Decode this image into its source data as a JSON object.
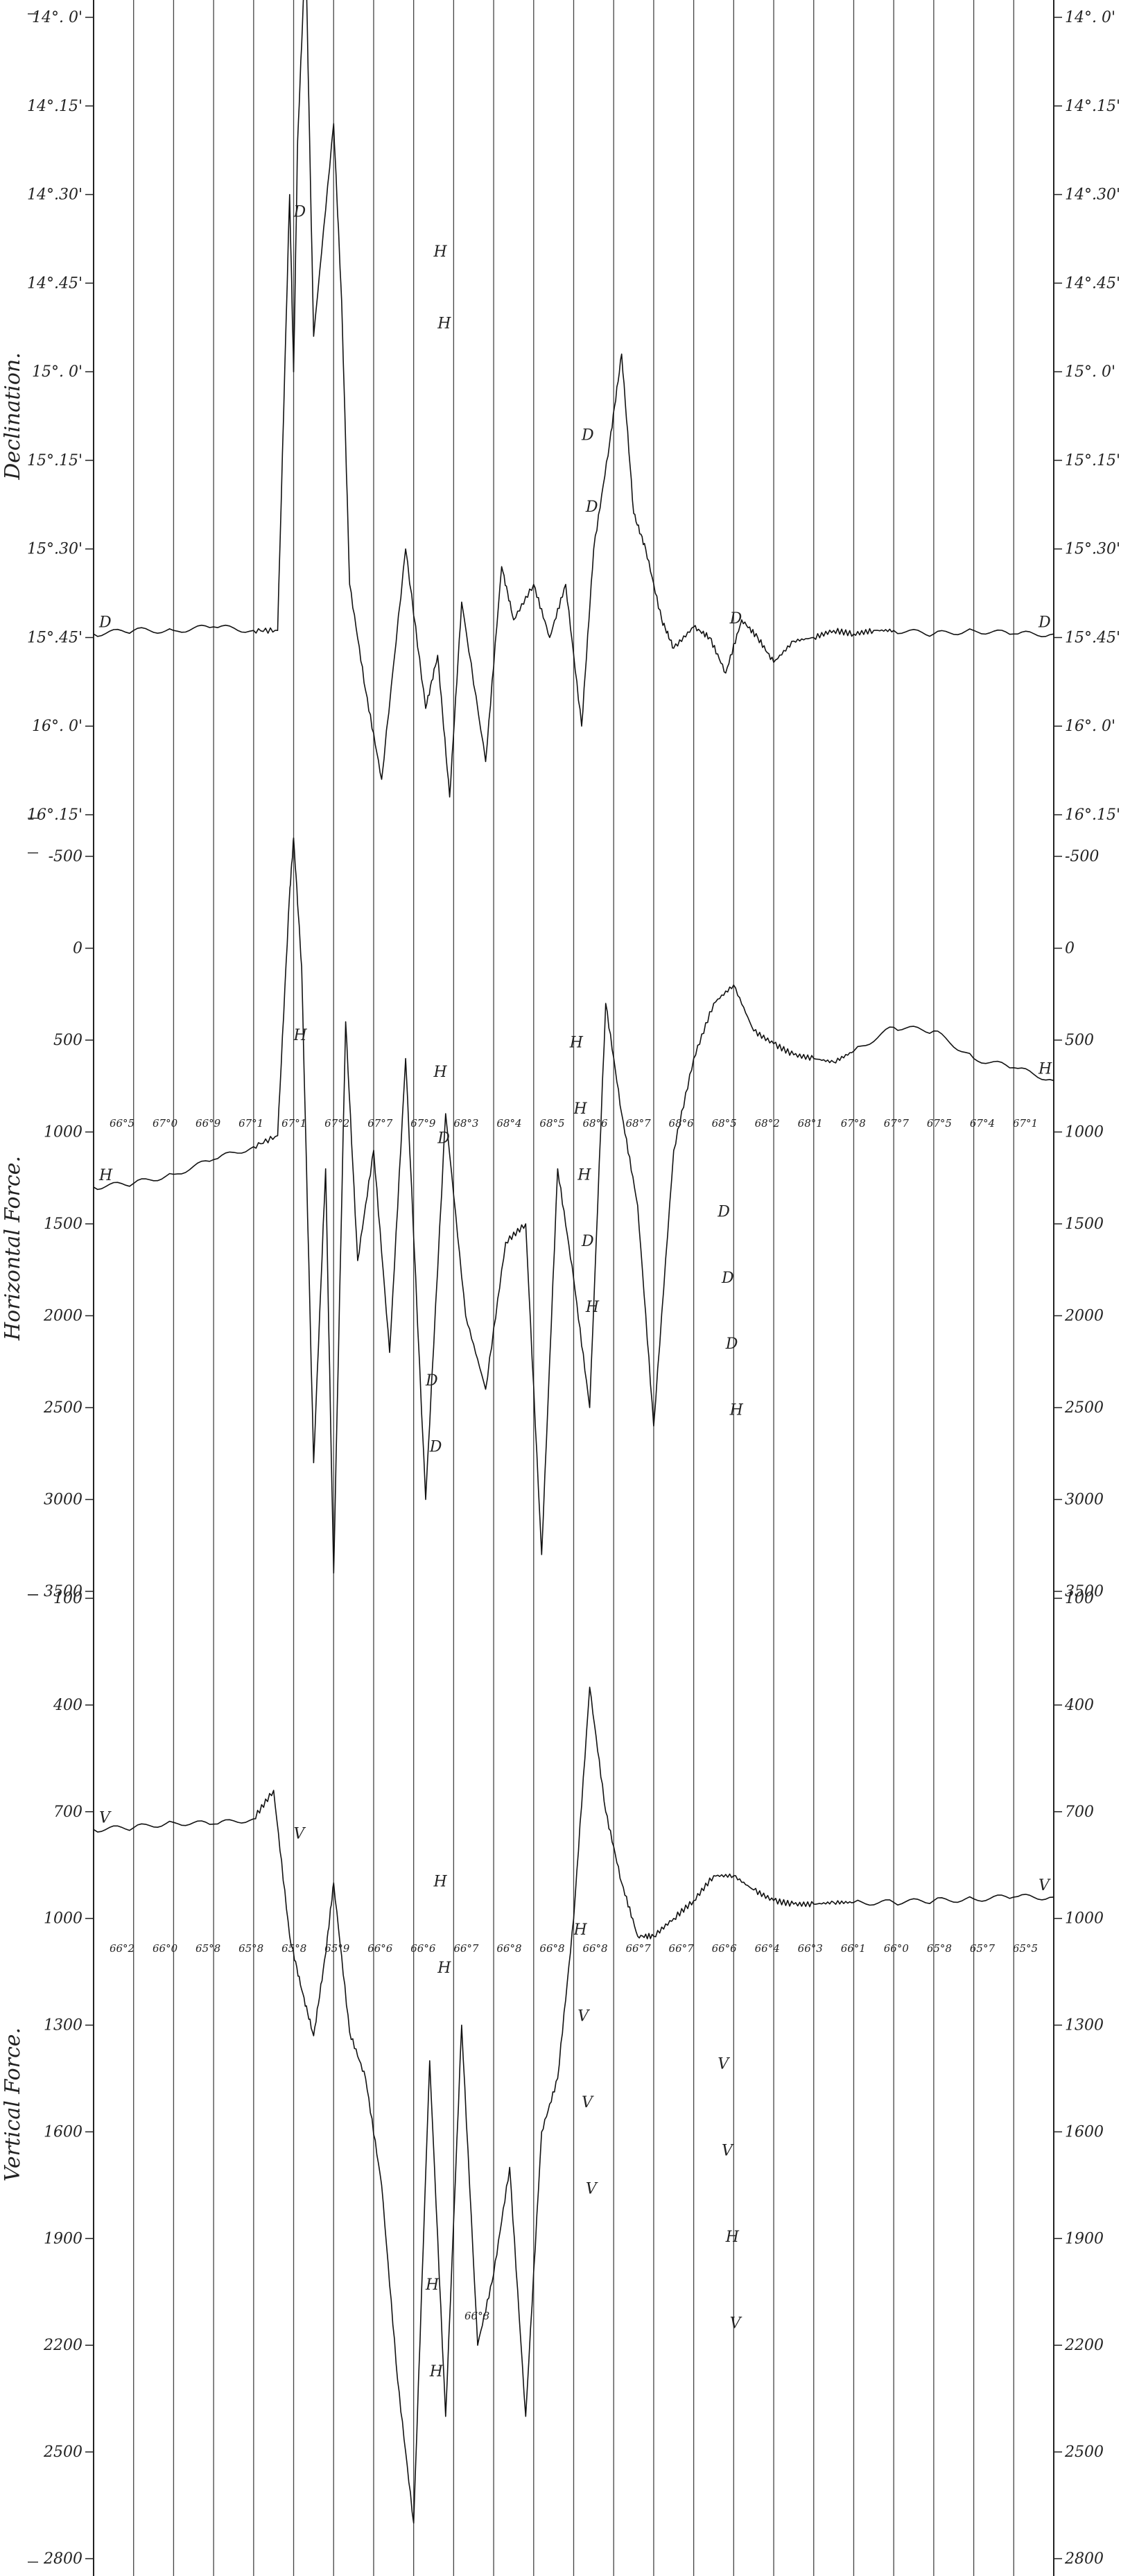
{
  "chart_data": [
    {
      "type": "line",
      "panel": "declination",
      "section_label": "Declination.",
      "ytick_labels_left": [
        "14°. 0'",
        "14°.15'",
        "14°.30'",
        "14°.45'",
        "15°. 0'",
        "15°.15'",
        "15°.30'",
        "15°.45'",
        "16°. 0'",
        "16°.15'"
      ],
      "ytick_labels_right": [
        "14°. 0'",
        "14°.15'",
        "14°.30'",
        "14°.45'",
        "15°. 0'",
        "15°.15'",
        "15°.30'",
        "15°.45'",
        "16°. 0'",
        "16°.15'"
      ],
      "ytick_values": [
        14.0,
        14.25,
        14.5,
        14.75,
        15.0,
        15.25,
        15.5,
        15.75,
        16.0,
        16.25
      ],
      "ylim": [
        14.0,
        16.25
      ],
      "y_inverted": true,
      "x_range": [
        0,
        24
      ],
      "series": [
        {
          "trace": "D",
          "x": [
            0,
            1,
            2,
            3,
            4,
            4.6,
            4.9,
            5.0,
            5.1,
            5.3,
            5.5,
            6.0,
            6.2,
            6.4,
            6.8,
            7.2,
            7.8,
            8.3,
            8.6,
            8.9,
            9.2,
            9.8,
            10.2,
            10.5,
            11.0,
            11.4,
            11.8,
            12.2,
            12.5,
            12.9,
            13.2,
            13.5,
            13.8,
            14.2,
            14.5,
            15.0,
            15.4,
            15.8,
            16.2,
            16.6,
            17.0,
            17.5,
            18.0,
            18.5,
            19.0,
            19.5,
            20.0,
            21.0,
            22.0,
            23.0,
            24.0
          ],
          "values": [
            15.74,
            15.73,
            15.73,
            15.72,
            15.73,
            15.73,
            14.5,
            15.0,
            14.35,
            13.8,
            14.9,
            14.3,
            14.8,
            15.6,
            15.9,
            16.15,
            15.5,
            15.95,
            15.8,
            16.2,
            15.65,
            16.1,
            15.55,
            15.7,
            15.6,
            15.75,
            15.6,
            16.0,
            15.5,
            15.2,
            14.95,
            15.4,
            15.5,
            15.7,
            15.78,
            15.72,
            15.75,
            15.85,
            15.7,
            15.75,
            15.82,
            15.76,
            15.75,
            15.73,
            15.74,
            15.73,
            15.73,
            15.74,
            15.73,
            15.74,
            15.74
          ]
        }
      ],
      "trace_letters": [
        "D",
        "D",
        "H",
        "D",
        "D",
        "H"
      ]
    },
    {
      "type": "line",
      "panel": "horizontal-force",
      "section_label": "Horizontal Force.",
      "ytick_labels_left": [
        "-500",
        "0",
        "500",
        "1000",
        "1500",
        "2000",
        "2500",
        "3000",
        "3500"
      ],
      "ytick_labels_right": [
        "-500",
        "0",
        "500",
        "1000",
        "1500",
        "2000",
        "2500",
        "3000",
        "3500"
      ],
      "ytick_values": [
        -500,
        0,
        500,
        1000,
        1500,
        2000,
        2500,
        3000,
        3500
      ],
      "ylim": [
        -500,
        3500
      ],
      "y_inverted": true,
      "x_range": [
        0,
        24
      ],
      "temperature_labels": [
        "66°5",
        "67°0",
        "66°9",
        "67°1",
        "67°1",
        "67°2",
        "67°7",
        "67°9",
        "68°3",
        "68°4",
        "68°5",
        "68°6",
        "68°7",
        "68°6",
        "68°5",
        "68°2",
        "68°1",
        "67°8",
        "67°7",
        "67°5",
        "67°4",
        "67°1"
      ],
      "series": [
        {
          "trace": "H",
          "x": [
            0,
            1,
            2,
            3,
            4,
            4.6,
            4.9,
            5.0,
            5.2,
            5.5,
            5.8,
            6.0,
            6.3,
            6.6,
            7.0,
            7.4,
            7.8,
            8.3,
            8.8,
            9.3,
            9.8,
            10.3,
            10.8,
            11.2,
            11.6,
            12.0,
            12.4,
            12.8,
            13.2,
            13.6,
            14.0,
            14.5,
            15.0,
            15.5,
            16.0,
            16.5,
            17.0,
            17.5,
            18.0,
            18.5,
            19.0,
            20.0,
            21.0,
            22.0,
            23.0,
            24.0
          ],
          "values": [
            1300,
            1280,
            1230,
            1150,
            1080,
            1020,
            -300,
            -600,
            100,
            2800,
            1200,
            3400,
            400,
            1700,
            1100,
            2200,
            600,
            3000,
            900,
            2000,
            2400,
            1600,
            1500,
            3300,
            1200,
            1800,
            2500,
            300,
            900,
            1400,
            2600,
            1100,
            600,
            300,
            200,
            450,
            520,
            580,
            600,
            620,
            560,
            430,
            450,
            600,
            650,
            720
          ]
        }
      ],
      "trace_letters": [
        "H",
        "H",
        "D",
        "H",
        "D",
        "H",
        "D",
        "H",
        "D",
        "D",
        "H",
        "D",
        "D",
        "H"
      ]
    },
    {
      "type": "line",
      "panel": "vertical-force",
      "section_label": "Vertical Force.",
      "ytick_labels_left": [
        "100",
        "400",
        "700",
        "1000",
        "1300",
        "1600",
        "1900",
        "2200",
        "2500",
        "2800"
      ],
      "ytick_labels_right": [
        "100",
        "400",
        "700",
        "1000",
        "1300",
        "1600",
        "1900",
        "2200",
        "2500",
        "2800"
      ],
      "ytick_values": [
        100,
        400,
        700,
        1000,
        1300,
        1600,
        1900,
        2200,
        2500,
        2800
      ],
      "ylim": [
        100,
        2800
      ],
      "y_inverted": true,
      "x_range": [
        0,
        24
      ],
      "temperature_labels": [
        "66°2",
        "66°0",
        "65°8",
        "65°8",
        "65°8",
        "65°9",
        "66°6",
        "66°6",
        "66°7",
        "66°8",
        "66°8",
        "66°8",
        "66°7",
        "66°7",
        "66°6",
        "66°4",
        "66°3",
        "66°1",
        "66°0",
        "65°8",
        "65°7",
        "65°5"
      ],
      "series": [
        {
          "trace": "V",
          "x": [
            0,
            1,
            2,
            3,
            4,
            4.5,
            4.9,
            5.2,
            5.5,
            5.8,
            6.0,
            6.4,
            6.8,
            7.2,
            7.6,
            8.0,
            8.4,
            8.8,
            9.2,
            9.6,
            10.0,
            10.4,
            10.8,
            11.2,
            11.6,
            12.0,
            12.4,
            12.8,
            13.2,
            13.6,
            14.0,
            14.5,
            15.0,
            15.5,
            16.0,
            16.5,
            17.0,
            17.5,
            18.0,
            18.5,
            19.0,
            20.0,
            21.0,
            22.0,
            23.0,
            24.0
          ],
          "values": [
            750,
            745,
            730,
            735,
            720,
            640,
            1050,
            1200,
            1330,
            1100,
            900,
            1320,
            1450,
            1750,
            2300,
            2700,
            1400,
            2400,
            1300,
            2200,
            2000,
            1700,
            2400,
            1600,
            1450,
            1000,
            350,
            700,
            900,
            1050,
            1050,
            1000,
            950,
            880,
            880,
            920,
            950,
            960,
            960,
            955,
            955,
            955,
            950,
            945,
            940,
            940
          ]
        }
      ],
      "trace_letters": [
        "V",
        "V",
        "H",
        "V",
        "V",
        "H",
        "H",
        "V",
        "H",
        "V",
        "H",
        "H",
        "V"
      ],
      "annotations": [
        "66°8"
      ]
    }
  ]
}
